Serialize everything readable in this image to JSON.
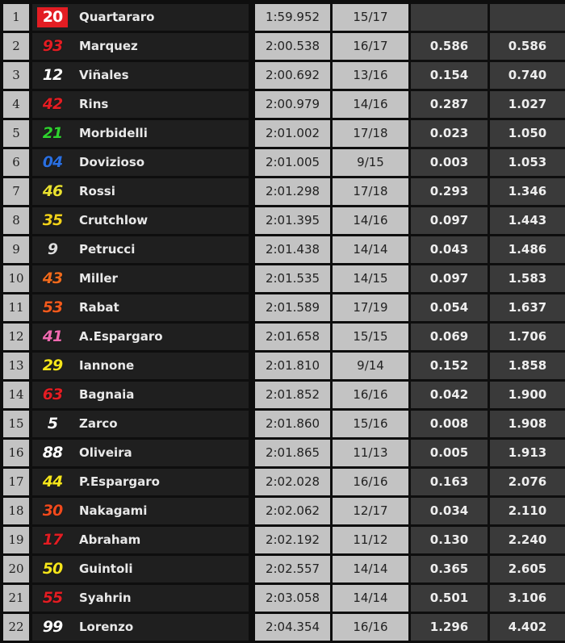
{
  "rows": [
    {
      "pos": "1",
      "num": "20",
      "color": "#e31d23",
      "bg": "#e31d23",
      "rider": "Quartararo",
      "time": "1:59.952",
      "laps": "15/17",
      "gap": "",
      "total": ""
    },
    {
      "pos": "2",
      "num": "93",
      "color": "#e31d23",
      "rider": "Marquez",
      "time": "2:00.538",
      "laps": "16/17",
      "gap": "0.586",
      "total": "0.586"
    },
    {
      "pos": "3",
      "num": "12",
      "color": "#ffffff",
      "rider": "Viñales",
      "time": "2:00.692",
      "laps": "13/16",
      "gap": "0.154",
      "total": "0.740"
    },
    {
      "pos": "4",
      "num": "42",
      "color": "#e31d23",
      "rider": "Rins",
      "time": "2:00.979",
      "laps": "14/16",
      "gap": "0.287",
      "total": "1.027"
    },
    {
      "pos": "5",
      "num": "21",
      "color": "#2fd12f",
      "rider": "Morbidelli",
      "time": "2:01.002",
      "laps": "17/18",
      "gap": "0.023",
      "total": "1.050"
    },
    {
      "pos": "6",
      "num": "04",
      "color": "#2a6fe0",
      "rider": "Dovizioso",
      "time": "2:01.005",
      "laps": "9/15",
      "gap": "0.003",
      "total": "1.053"
    },
    {
      "pos": "7",
      "num": "46",
      "color": "#e8e030",
      "rider": "Rossi",
      "time": "2:01.298",
      "laps": "17/18",
      "gap": "0.293",
      "total": "1.346"
    },
    {
      "pos": "8",
      "num": "35",
      "color": "#f2d21b",
      "rider": "Crutchlow",
      "time": "2:01.395",
      "laps": "14/16",
      "gap": "0.097",
      "total": "1.443"
    },
    {
      "pos": "9",
      "num": "9",
      "color": "#dddddd",
      "rider": "Petrucci",
      "time": "2:01.438",
      "laps": "14/14",
      "gap": "0.043",
      "total": "1.486"
    },
    {
      "pos": "10",
      "num": "43",
      "color": "#ef6a1d",
      "rider": "Miller",
      "time": "2:01.535",
      "laps": "14/15",
      "gap": "0.097",
      "total": "1.583"
    },
    {
      "pos": "11",
      "num": "53",
      "color": "#f25a1d",
      "rider": "Rabat",
      "time": "2:01.589",
      "laps": "17/19",
      "gap": "0.054",
      "total": "1.637"
    },
    {
      "pos": "12",
      "num": "41",
      "color": "#f06ab0",
      "rider": "A.Espargaro",
      "time": "2:01.658",
      "laps": "15/15",
      "gap": "0.069",
      "total": "1.706"
    },
    {
      "pos": "13",
      "num": "29",
      "color": "#f5e51b",
      "rider": "Iannone",
      "time": "2:01.810",
      "laps": "9/14",
      "gap": "0.152",
      "total": "1.858"
    },
    {
      "pos": "14",
      "num": "63",
      "color": "#e31d23",
      "rider": "Bagnaia",
      "time": "2:01.852",
      "laps": "16/16",
      "gap": "0.042",
      "total": "1.900"
    },
    {
      "pos": "15",
      "num": "5",
      "color": "#ffffff",
      "rider": "Zarco",
      "time": "2:01.860",
      "laps": "15/16",
      "gap": "0.008",
      "total": "1.908"
    },
    {
      "pos": "16",
      "num": "88",
      "color": "#ffffff",
      "rider": "Oliveira",
      "time": "2:01.865",
      "laps": "11/13",
      "gap": "0.005",
      "total": "1.913"
    },
    {
      "pos": "17",
      "num": "44",
      "color": "#f5e51b",
      "rider": "P.Espargaro",
      "time": "2:02.028",
      "laps": "16/16",
      "gap": "0.163",
      "total": "2.076"
    },
    {
      "pos": "18",
      "num": "30",
      "color": "#f04a1d",
      "rider": "Nakagami",
      "time": "2:02.062",
      "laps": "12/17",
      "gap": "0.034",
      "total": "2.110"
    },
    {
      "pos": "19",
      "num": "17",
      "color": "#e31d23",
      "rider": "Abraham",
      "time": "2:02.192",
      "laps": "11/12",
      "gap": "0.130",
      "total": "2.240"
    },
    {
      "pos": "20",
      "num": "50",
      "color": "#f5e51b",
      "rider": "Guintoli",
      "time": "2:02.557",
      "laps": "14/14",
      "gap": "0.365",
      "total": "2.605"
    },
    {
      "pos": "21",
      "num": "55",
      "color": "#e31d23",
      "rider": "Syahrin",
      "time": "2:03.058",
      "laps": "14/14",
      "gap": "0.501",
      "total": "3.106"
    },
    {
      "pos": "22",
      "num": "99",
      "color": "#ffffff",
      "rider": "Lorenzo",
      "time": "2:04.354",
      "laps": "16/16",
      "gap": "1.296",
      "total": "4.402"
    }
  ]
}
